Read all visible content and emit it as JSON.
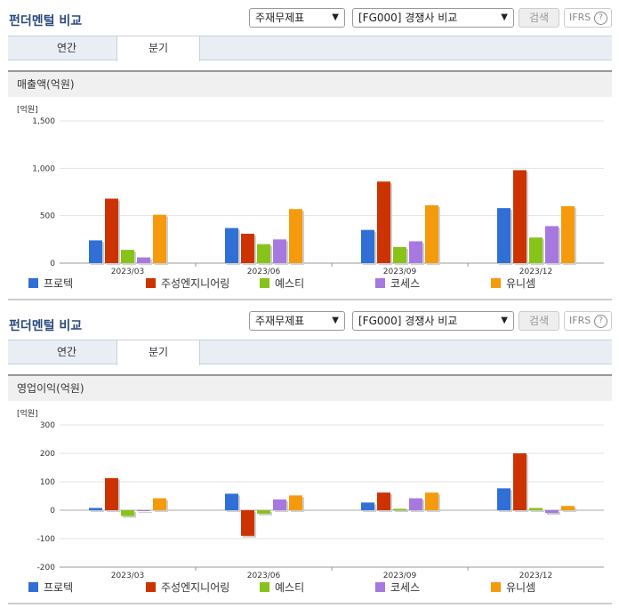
{
  "panels": [
    {
      "title": "펀더멘털 비교",
      "select1": "주재무제표",
      "select2": "[FG000] 경쟁사 비교",
      "search_label": "검색",
      "ifrs_label": "IFRS",
      "ifrs_q": "?",
      "tabs": [
        "연간",
        "분기"
      ],
      "active_tab": 1,
      "section_title": "매출액(억원)"
    },
    {
      "title": "펀더멘털 비교",
      "select1": "주재무제표",
      "select2": "[FG000] 경쟁사 비교",
      "search_label": "검색",
      "ifrs_label": "IFRS",
      "ifrs_q": "?",
      "tabs": [
        "연간",
        "분기"
      ],
      "active_tab": 1,
      "section_title": "영업이익(억원)"
    }
  ],
  "colors": {
    "series": [
      "#2f6fd6",
      "#cc3300",
      "#88c31a",
      "#a678e0",
      "#f59a0c"
    ]
  },
  "chart_data": [
    {
      "type": "bar",
      "unit_label": "[억원]",
      "categories": [
        "2023/03",
        "2023/06",
        "2023/09",
        "2023/12"
      ],
      "ylim": [
        0,
        1500
      ],
      "yticks": [
        0,
        500,
        1000,
        1500
      ],
      "ytick_labels": [
        "0",
        "500",
        "1,000",
        "1,500"
      ],
      "series": [
        {
          "name": "프로텍",
          "values": [
            240,
            370,
            350,
            580
          ]
        },
        {
          "name": "주성엔지니어링",
          "values": [
            680,
            310,
            860,
            980
          ]
        },
        {
          "name": "예스티",
          "values": [
            140,
            200,
            170,
            270
          ]
        },
        {
          "name": "코세스",
          "values": [
            60,
            250,
            230,
            390
          ]
        },
        {
          "name": "유니셈",
          "values": [
            510,
            570,
            610,
            600
          ]
        }
      ]
    },
    {
      "type": "bar",
      "unit_label": "[억원]",
      "categories": [
        "2023/03",
        "2023/06",
        "2023/09",
        "2023/12"
      ],
      "ylim": [
        -200,
        300
      ],
      "yticks": [
        -200,
        -100,
        0,
        100,
        200,
        300
      ],
      "ytick_labels": [
        "-200",
        "-100",
        "0",
        "100",
        "200",
        "300"
      ],
      "series": [
        {
          "name": "프로텍",
          "values": [
            8,
            58,
            27,
            77
          ]
        },
        {
          "name": "주성엔지니어링",
          "values": [
            113,
            -90,
            62,
            200
          ]
        },
        {
          "name": "예스티",
          "values": [
            -20,
            -12,
            5,
            8
          ]
        },
        {
          "name": "코세스",
          "values": [
            -3,
            38,
            42,
            -10
          ]
        },
        {
          "name": "유니셈",
          "values": [
            42,
            52,
            62,
            15
          ]
        }
      ]
    }
  ]
}
